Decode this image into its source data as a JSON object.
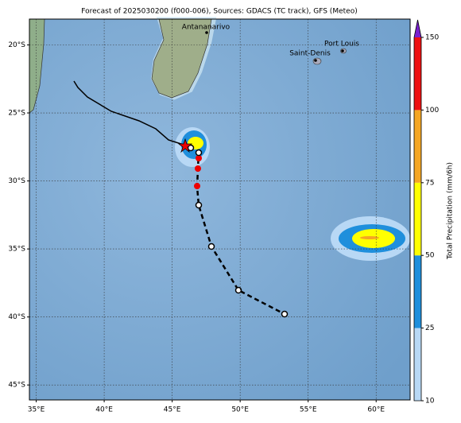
{
  "chart_data": {
    "type": "map",
    "title": "Forecast of 2025030200 (f000-006), Sources: GDACS (TC track), GFS (Meteo)",
    "xlim": [
      34.5,
      62.5
    ],
    "ylim": [
      -46.1,
      -18.1
    ],
    "xticks": [
      {
        "value": 35,
        "label": "35°E"
      },
      {
        "value": 40,
        "label": "40°E"
      },
      {
        "value": 45,
        "label": "45°E"
      },
      {
        "value": 50,
        "label": "50°E"
      },
      {
        "value": 55,
        "label": "55°E"
      },
      {
        "value": 60,
        "label": "60°E"
      }
    ],
    "yticks": [
      {
        "value": -20,
        "label": "20°S"
      },
      {
        "value": -25,
        "label": "25°S"
      },
      {
        "value": -30,
        "label": "30°S"
      },
      {
        "value": -35,
        "label": "35°S"
      },
      {
        "value": -40,
        "label": "40°S"
      },
      {
        "value": -45,
        "label": "45°S"
      }
    ],
    "grid": true,
    "places": [
      "Antananarivo",
      "Port Louis",
      "Saint-Denis"
    ],
    "colorbar": {
      "label": "Total Precipitation (mm/6h)",
      "ticks": [
        10,
        25,
        50,
        75,
        100,
        150
      ],
      "colors": [
        "#b8d8f5",
        "#1f8fdc",
        "#ffff00",
        "#f5a623",
        "#ee1111"
      ],
      "extend_color": "#7a1fcf"
    }
  }
}
